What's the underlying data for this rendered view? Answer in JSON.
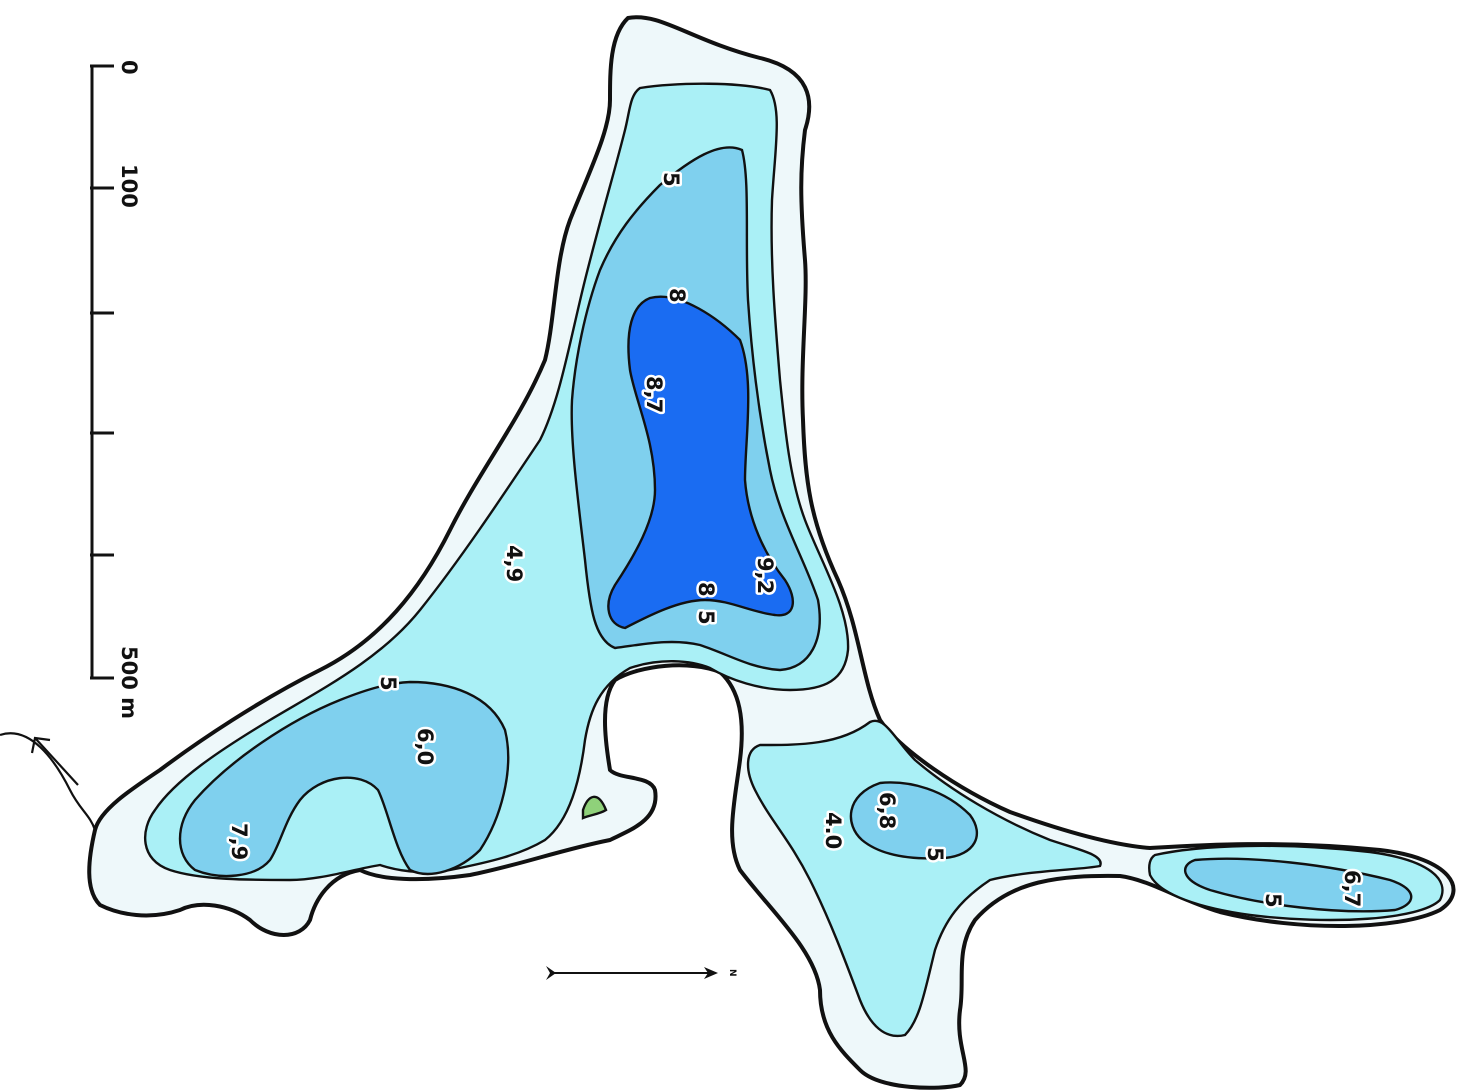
{
  "map": {
    "scale_bar": {
      "labels": [
        "0",
        "100",
        "500 m"
      ]
    },
    "depth_labels": {
      "main_north_depth": "4,9",
      "contour_5_upper": "5",
      "contour_8_upper": "8",
      "basin_a_max": "8,7",
      "basin_a_secondary": "9,2",
      "contour_8_lower": "8",
      "contour_5_lower": "5",
      "contour_5_west": "5",
      "basin_b_depth": "6,0",
      "basin_b_max": "7,9",
      "middle_lake_depth": "4.0",
      "basin_c_max": "6,8",
      "contour_5_middle": "5",
      "basin_d_max": "6,7",
      "contour_5_east": "5"
    },
    "north_arrow": {
      "label": "N"
    },
    "colors": {
      "shallow_shore": "#eef8fa",
      "depth_0_5": "#aaf0f6",
      "depth_5_8": "#7fd0ee",
      "depth_8_plus": "#1a6cf2",
      "island": "#8fd17a",
      "outline": "#111111"
    }
  }
}
